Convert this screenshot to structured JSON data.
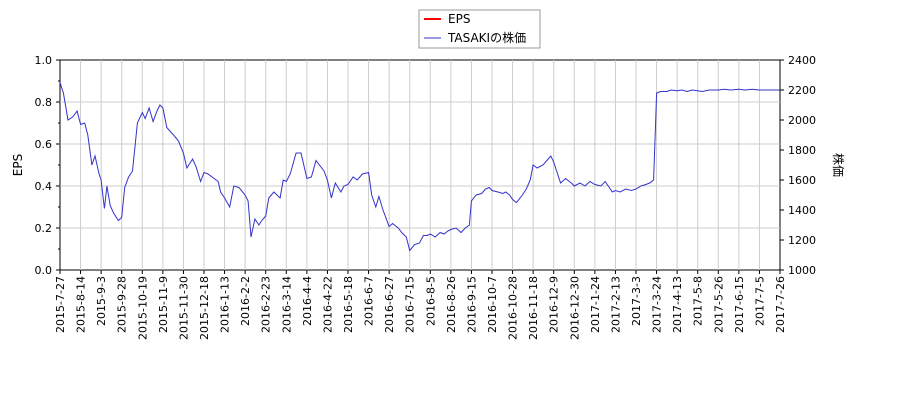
{
  "chart_data": {
    "type": "line",
    "legend": {
      "placement": "top-center",
      "entries": [
        {
          "label": "EPS",
          "color": "#ff0000"
        },
        {
          "label": "TASAKIの株価",
          "color": "#3333cc"
        }
      ]
    },
    "ylabel_left": "EPS",
    "ylabel_right": "株価",
    "ylim_left": [
      0.0,
      1.0
    ],
    "ylim_right": [
      1000,
      2400
    ],
    "y_ticks_left": [
      "0.0",
      "0.2",
      "0.4",
      "0.6",
      "0.8",
      "1.0"
    ],
    "y_ticks_right": [
      "1000",
      "1200",
      "1400",
      "1600",
      "1800",
      "2000",
      "2200",
      "2400"
    ],
    "grid": true,
    "x_tick_labels": [
      "2015-7-27",
      "2015-8-14",
      "2015-9-3",
      "2015-9-28",
      "2015-10-19",
      "2015-11-9",
      "2015-11-30",
      "2015-12-18",
      "2016-1-13",
      "2016-2-2",
      "2016-2-23",
      "2016-3-14",
      "2016-4-4",
      "2016-4-22",
      "2016-5-18",
      "2016-6-7",
      "2016-6-27",
      "2016-7-15",
      "2016-8-5",
      "2016-8-26",
      "2016-9-15",
      "2016-10-7",
      "2016-10-28",
      "2016-11-18",
      "2016-12-9",
      "2016-12-30",
      "2017-1-24",
      "2017-2-13",
      "2017-3-3",
      "2017-3-24",
      "2017-4-13",
      "2017-5-8",
      "2017-5-26",
      "2017-6-15",
      "2017-7-5",
      "2017-7-26"
    ],
    "series": [
      {
        "name": "EPS",
        "axis": "left",
        "color": "#ff0000",
        "values": []
      },
      {
        "name": "TASAKIの株価",
        "axis": "right",
        "color": "#3333cc",
        "points": [
          [
            "2015-7-27",
            2250
          ],
          [
            "2015-7-30",
            2180
          ],
          [
            "2015-8-3",
            2000
          ],
          [
            "2015-8-7",
            2020
          ],
          [
            "2015-8-11",
            2060
          ],
          [
            "2015-8-14",
            1970
          ],
          [
            "2015-8-18",
            1980
          ],
          [
            "2015-8-21",
            1900
          ],
          [
            "2015-8-25",
            1700
          ],
          [
            "2015-8-28",
            1760
          ],
          [
            "2015-9-1",
            1640
          ],
          [
            "2015-9-3",
            1600
          ],
          [
            "2015-9-7",
            1410
          ],
          [
            "2015-9-10",
            1560
          ],
          [
            "2015-9-14",
            1430
          ],
          [
            "2015-9-18",
            1380
          ],
          [
            "2015-9-24",
            1330
          ],
          [
            "2015-9-28",
            1350
          ],
          [
            "2015-10-1",
            1550
          ],
          [
            "2015-10-5",
            1620
          ],
          [
            "2015-10-9",
            1660
          ],
          [
            "2015-10-14",
            1980
          ],
          [
            "2015-10-19",
            2050
          ],
          [
            "2015-10-22",
            2010
          ],
          [
            "2015-10-26",
            2080
          ],
          [
            "2015-10-30",
            1990
          ],
          [
            "2015-11-3",
            2060
          ],
          [
            "2015-11-6",
            2100
          ],
          [
            "2015-11-9",
            2080
          ],
          [
            "2015-11-13",
            1950
          ],
          [
            "2015-11-17",
            1920
          ],
          [
            "2015-11-20",
            1900
          ],
          [
            "2015-11-25",
            1860
          ],
          [
            "2015-11-30",
            1780
          ],
          [
            "2015-12-3",
            1680
          ],
          [
            "2015-12-8",
            1740
          ],
          [
            "2015-12-11",
            1690
          ],
          [
            "2015-12-15",
            1590
          ],
          [
            "2015-12-18",
            1650
          ],
          [
            "2015-12-23",
            1640
          ],
          [
            "2016-1-5",
            1590
          ],
          [
            "2016-1-8",
            1520
          ],
          [
            "2016-1-13",
            1480
          ],
          [
            "2016-1-18",
            1420
          ],
          [
            "2016-1-22",
            1560
          ],
          [
            "2016-1-27",
            1550
          ],
          [
            "2016-2-2",
            1500
          ],
          [
            "2016-2-5",
            1460
          ],
          [
            "2016-2-8",
            1220
          ],
          [
            "2016-2-12",
            1340
          ],
          [
            "2016-2-16",
            1300
          ],
          [
            "2016-2-19",
            1330
          ],
          [
            "2016-2-23",
            1360
          ],
          [
            "2016-2-26",
            1480
          ],
          [
            "2016-3-2",
            1520
          ],
          [
            "2016-3-8",
            1480
          ],
          [
            "2016-3-11",
            1600
          ],
          [
            "2016-3-14",
            1590
          ],
          [
            "2016-3-18",
            1640
          ],
          [
            "2016-3-24",
            1780
          ],
          [
            "2016-3-29",
            1780
          ],
          [
            "2016-4-4",
            1610
          ],
          [
            "2016-4-8",
            1620
          ],
          [
            "2016-4-12",
            1730
          ],
          [
            "2016-4-15",
            1700
          ],
          [
            "2016-4-19",
            1660
          ],
          [
            "2016-4-22",
            1600
          ],
          [
            "2016-4-27",
            1480
          ],
          [
            "2016-5-2",
            1580
          ],
          [
            "2016-5-9",
            1520
          ],
          [
            "2016-5-13",
            1560
          ],
          [
            "2016-5-18",
            1570
          ],
          [
            "2016-5-23",
            1620
          ],
          [
            "2016-5-27",
            1600
          ],
          [
            "2016-6-1",
            1640
          ],
          [
            "2016-6-7",
            1650
          ],
          [
            "2016-6-10",
            1500
          ],
          [
            "2016-6-14",
            1420
          ],
          [
            "2016-6-17",
            1490
          ],
          [
            "2016-6-21",
            1400
          ],
          [
            "2016-6-27",
            1290
          ],
          [
            "2016-6-30",
            1310
          ],
          [
            "2016-7-5",
            1280
          ],
          [
            "2016-7-8",
            1250
          ],
          [
            "2016-7-12",
            1220
          ],
          [
            "2016-7-15",
            1130
          ],
          [
            "2016-7-20",
            1170
          ],
          [
            "2016-7-25",
            1180
          ],
          [
            "2016-7-29",
            1230
          ],
          [
            "2016-8-2",
            1230
          ],
          [
            "2016-8-5",
            1240
          ],
          [
            "2016-8-10",
            1220
          ],
          [
            "2016-8-15",
            1250
          ],
          [
            "2016-8-19",
            1240
          ],
          [
            "2016-8-23",
            1260
          ],
          [
            "2016-8-26",
            1270
          ],
          [
            "2016-8-31",
            1280
          ],
          [
            "2016-9-5",
            1250
          ],
          [
            "2016-9-9",
            1280
          ],
          [
            "2016-9-13",
            1300
          ],
          [
            "2016-9-15",
            1460
          ],
          [
            "2016-9-20",
            1500
          ],
          [
            "2016-9-26",
            1510
          ],
          [
            "2016-9-30",
            1540
          ],
          [
            "2016-10-4",
            1550
          ],
          [
            "2016-10-7",
            1530
          ],
          [
            "2016-10-13",
            1520
          ],
          [
            "2016-10-18",
            1510
          ],
          [
            "2016-10-21",
            1520
          ],
          [
            "2016-10-25",
            1500
          ],
          [
            "2016-10-28",
            1470
          ],
          [
            "2016-11-1",
            1450
          ],
          [
            "2016-11-7",
            1500
          ],
          [
            "2016-11-11",
            1540
          ],
          [
            "2016-11-15",
            1600
          ],
          [
            "2016-11-18",
            1700
          ],
          [
            "2016-11-22",
            1680
          ],
          [
            "2016-11-28",
            1700
          ],
          [
            "2016-12-2",
            1730
          ],
          [
            "2016-12-6",
            1760
          ],
          [
            "2016-12-9",
            1720
          ],
          [
            "2016-12-13",
            1640
          ],
          [
            "2016-12-16",
            1580
          ],
          [
            "2016-12-21",
            1610
          ],
          [
            "2016-12-27",
            1580
          ],
          [
            "2016-12-30",
            1560
          ],
          [
            "2017-1-6",
            1580
          ],
          [
            "2017-1-12",
            1560
          ],
          [
            "2017-1-18",
            1590
          ],
          [
            "2017-1-24",
            1570
          ],
          [
            "2017-1-30",
            1560
          ],
          [
            "2017-2-3",
            1590
          ],
          [
            "2017-2-7",
            1550
          ],
          [
            "2017-2-10",
            1520
          ],
          [
            "2017-2-13",
            1530
          ],
          [
            "2017-2-17",
            1520
          ],
          [
            "2017-2-22",
            1540
          ],
          [
            "2017-2-27",
            1530
          ],
          [
            "2017-3-3",
            1540
          ],
          [
            "2017-3-8",
            1560
          ],
          [
            "2017-3-13",
            1570
          ],
          [
            "2017-3-17",
            1580
          ],
          [
            "2017-3-21",
            1600
          ],
          [
            "2017-3-23",
            1980
          ],
          [
            "2017-3-24",
            2180
          ],
          [
            "2017-3-28",
            2190
          ],
          [
            "2017-4-3",
            2190
          ],
          [
            "2017-4-7",
            2200
          ],
          [
            "2017-4-13",
            2195
          ],
          [
            "2017-4-19",
            2200
          ],
          [
            "2017-4-25",
            2190
          ],
          [
            "2017-5-1",
            2200
          ],
          [
            "2017-5-8",
            2195
          ],
          [
            "2017-5-12",
            2190
          ],
          [
            "2017-5-18",
            2200
          ],
          [
            "2017-5-26",
            2200
          ],
          [
            "2017-6-1",
            2205
          ],
          [
            "2017-6-7",
            2200
          ],
          [
            "2017-6-15",
            2205
          ],
          [
            "2017-6-21",
            2200
          ],
          [
            "2017-6-28",
            2205
          ],
          [
            "2017-7-5",
            2200
          ],
          [
            "2017-7-12",
            2200
          ],
          [
            "2017-7-19",
            2200
          ],
          [
            "2017-7-26",
            2200
          ]
        ]
      }
    ]
  }
}
